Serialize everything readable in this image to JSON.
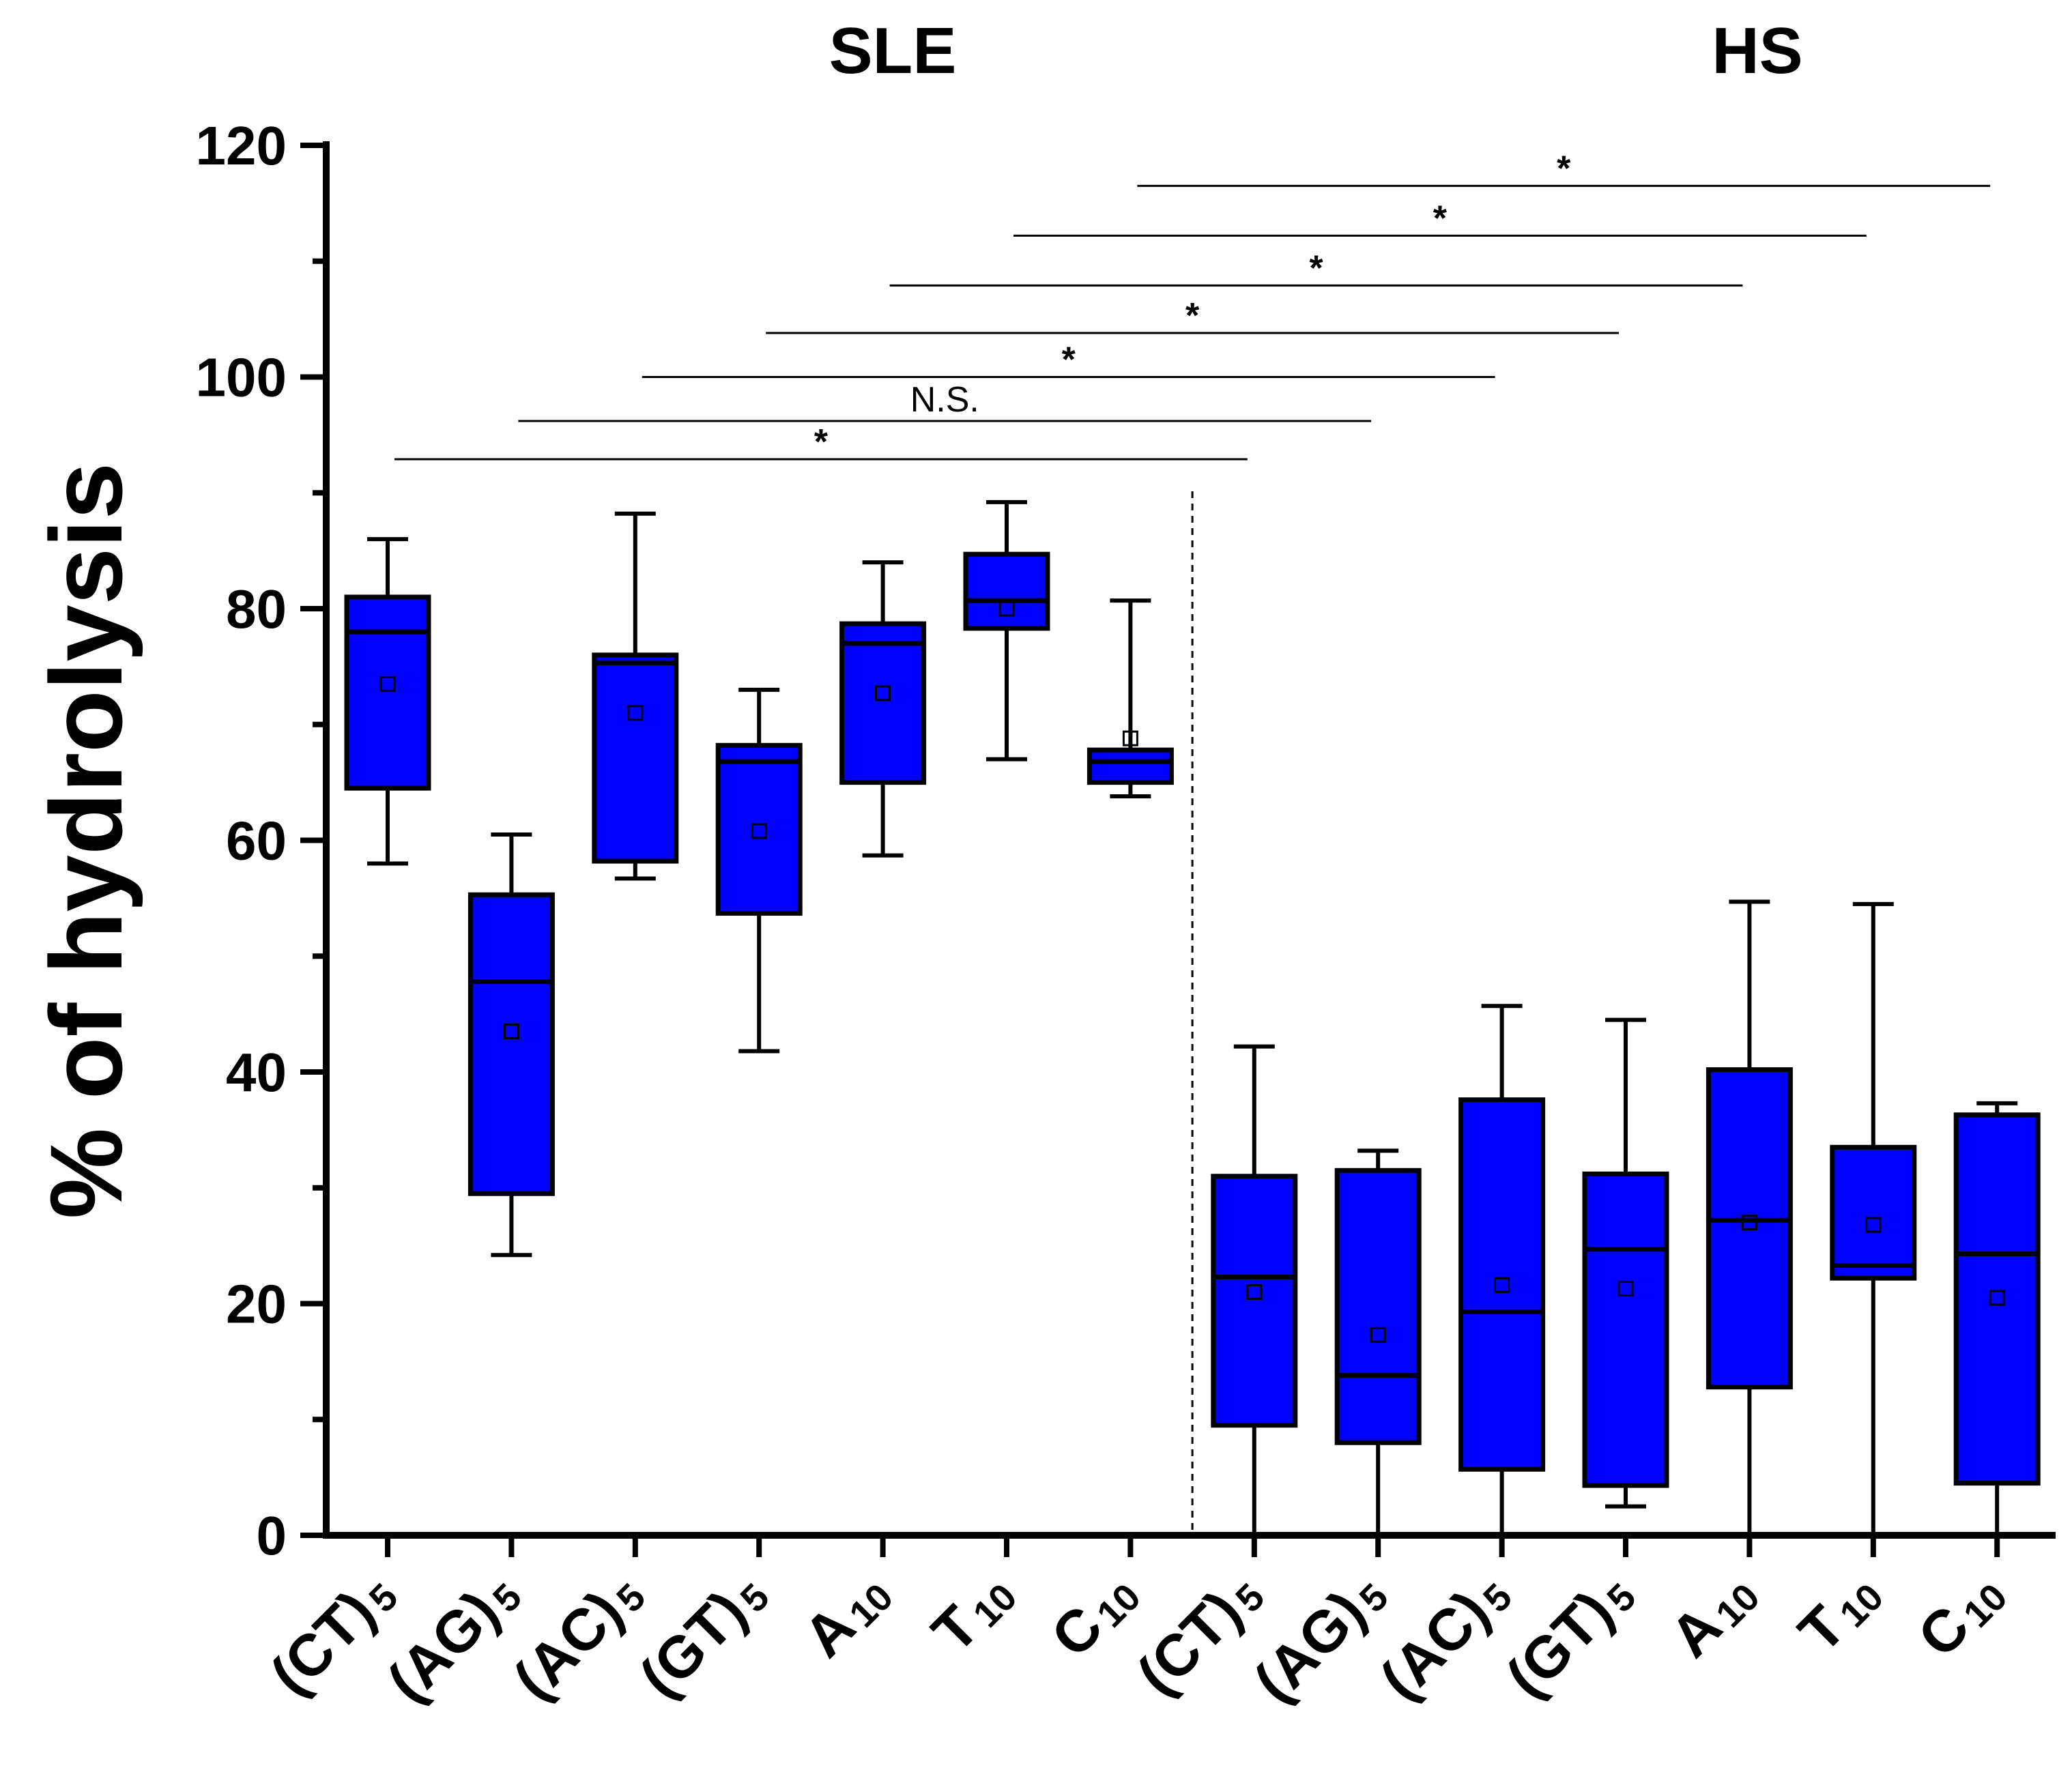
{
  "chart_data": {
    "type": "box",
    "ylabel": "% of hydrolysis",
    "ylim": [
      0,
      120
    ],
    "yticks": [
      0,
      20,
      40,
      60,
      80,
      100,
      120
    ],
    "colors": {
      "box_fill": "#0000ff",
      "stroke": "#000000"
    },
    "groups": [
      {
        "name": "SLE",
        "categories": [
          0,
          6
        ]
      },
      {
        "name": "HS",
        "categories": [
          7,
          13
        ]
      }
    ],
    "categories": [
      {
        "main": "(CT)",
        "sub": "5",
        "group": "SLE"
      },
      {
        "main": "(AG)",
        "sub": "5",
        "group": "SLE"
      },
      {
        "main": "(AC)",
        "sub": "5",
        "group": "SLE"
      },
      {
        "main": "(GT)",
        "sub": "5",
        "group": "SLE"
      },
      {
        "main": "A",
        "sub": "10",
        "group": "SLE"
      },
      {
        "main": "T",
        "sub": "10",
        "group": "SLE"
      },
      {
        "main": "C",
        "sub": "10",
        "group": "SLE"
      },
      {
        "main": "(CT)",
        "sub": "5",
        "group": "HS"
      },
      {
        "main": "(AG)",
        "sub": "5",
        "group": "HS"
      },
      {
        "main": "(AC)",
        "sub": "5",
        "group": "HS"
      },
      {
        "main": "(GT)",
        "sub": "5",
        "group": "HS"
      },
      {
        "main": "A",
        "sub": "10",
        "group": "HS"
      },
      {
        "main": "T",
        "sub": "10",
        "group": "HS"
      },
      {
        "main": "C",
        "sub": "10",
        "group": "HS"
      }
    ],
    "boxes": [
      {
        "whisker_low": 58.0,
        "q1": 64.5,
        "median": 78.0,
        "q3": 81.0,
        "whisker_high": 86.0,
        "mean": 73.5
      },
      {
        "whisker_low": 24.2,
        "q1": 29.5,
        "median": 47.8,
        "q3": 55.3,
        "whisker_high": 60.5,
        "mean": 43.5
      },
      {
        "whisker_low": 56.7,
        "q1": 58.2,
        "median": 75.3,
        "q3": 76.0,
        "whisker_high": 88.2,
        "mean": 71.0
      },
      {
        "whisker_low": 41.8,
        "q1": 53.7,
        "median": 66.8,
        "q3": 68.2,
        "whisker_high": 73.0,
        "mean": 60.8
      },
      {
        "whisker_low": 58.7,
        "q1": 65.0,
        "median": 77.0,
        "q3": 78.7,
        "whisker_high": 84.0,
        "mean": 72.7
      },
      {
        "whisker_low": 67.0,
        "q1": 78.3,
        "median": 80.7,
        "q3": 84.7,
        "whisker_high": 89.2,
        "mean": 80.0
      },
      {
        "whisker_low": 63.8,
        "q1": 65.0,
        "median": 66.8,
        "q3": 67.8,
        "whisker_high": 80.7,
        "mean": 68.8
      },
      {
        "whisker_low": 0.0,
        "q1": 9.5,
        "median": 22.3,
        "q3": 31.0,
        "whisker_high": 42.2,
        "mean": 21.0
      },
      {
        "whisker_low": 0.0,
        "q1": 8.0,
        "median": 13.8,
        "q3": 31.5,
        "whisker_high": 33.2,
        "mean": 17.3
      },
      {
        "whisker_low": 0.0,
        "q1": 5.7,
        "median": 19.3,
        "q3": 37.6,
        "whisker_high": 45.7,
        "mean": 21.6
      },
      {
        "whisker_low": 2.5,
        "q1": 4.3,
        "median": 24.7,
        "q3": 31.2,
        "whisker_high": 44.5,
        "mean": 21.3
      },
      {
        "whisker_low": 0.0,
        "q1": 12.8,
        "median": 27.2,
        "q3": 40.2,
        "whisker_high": 54.7,
        "mean": 27.0
      },
      {
        "whisker_low": 0.0,
        "q1": 22.2,
        "median": 23.3,
        "q3": 33.5,
        "whisker_high": 54.5,
        "mean": 26.8
      },
      {
        "whisker_low": 0.0,
        "q1": 4.5,
        "median": 24.3,
        "q3": 36.3,
        "whisker_high": 37.3,
        "mean": 20.5
      }
    ],
    "comparisons": [
      {
        "from": 0,
        "to": 7,
        "y": 92.9,
        "label": "*"
      },
      {
        "from": 1,
        "to": 8,
        "y": 96.2,
        "label": "N.S."
      },
      {
        "from": 2,
        "to": 9,
        "y": 100.0,
        "label": "*"
      },
      {
        "from": 3,
        "to": 10,
        "y": 103.8,
        "label": "*"
      },
      {
        "from": 4,
        "to": 11,
        "y": 107.9,
        "label": "*"
      },
      {
        "from": 5,
        "to": 12,
        "y": 112.2,
        "label": "*"
      },
      {
        "from": 6,
        "to": 13,
        "y": 116.5,
        "label": "*"
      }
    ]
  }
}
